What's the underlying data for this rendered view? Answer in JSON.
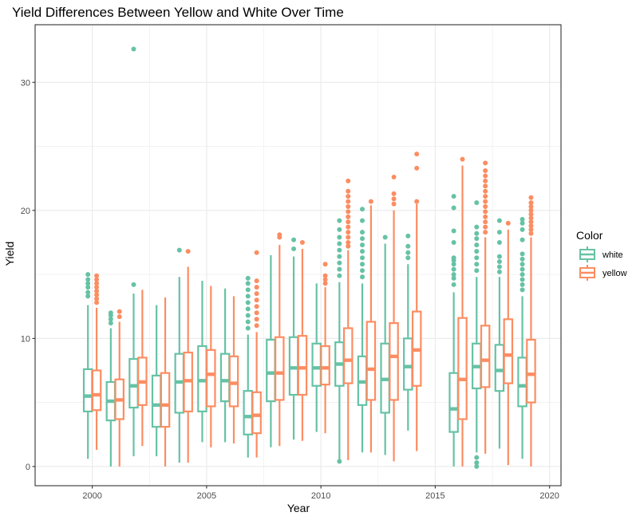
{
  "chart_data": {
    "type": "box",
    "title": "Yield Differences Between Yellow and White Over Time",
    "xlabel": "Year",
    "ylabel": "Yield",
    "xlim": [
      1997.5,
      2020.5
    ],
    "ylim": [
      -1.5,
      34.5
    ],
    "xticks": [
      2000,
      2005,
      2010,
      2015,
      2020
    ],
    "yticks": [
      0,
      10,
      20,
      30
    ],
    "grid": true,
    "legend": {
      "title": "Color",
      "position": "right"
    },
    "series": [
      {
        "name": "white",
        "color": "#66C2A5",
        "boxes": [
          {
            "year": 2000,
            "min": 0.6,
            "q1": 4.3,
            "median": 5.5,
            "q3": 7.6,
            "max": 12.6,
            "outliers": [
              13.3,
              13.6,
              14.0,
              14.3,
              14.6,
              15.0
            ]
          },
          {
            "year": 2001,
            "min": 0.0,
            "q1": 3.6,
            "median": 5.1,
            "q3": 6.6,
            "max": 10.8,
            "outliers": [
              11.2,
              11.5,
              11.8,
              12.0
            ]
          },
          {
            "year": 2002,
            "min": 0.8,
            "q1": 4.6,
            "median": 6.3,
            "q3": 8.4,
            "max": 13.5,
            "outliers": [
              14.2,
              32.6
            ]
          },
          {
            "year": 2003,
            "min": 0.8,
            "q1": 3.1,
            "median": 4.8,
            "q3": 7.1,
            "max": 12.6,
            "outliers": []
          },
          {
            "year": 2004,
            "min": 0.3,
            "q1": 4.2,
            "median": 6.6,
            "q3": 8.8,
            "max": 14.8,
            "outliers": [
              16.9
            ]
          },
          {
            "year": 2005,
            "min": 1.9,
            "q1": 4.3,
            "median": 6.7,
            "q3": 9.4,
            "max": 14.5,
            "outliers": []
          },
          {
            "year": 2006,
            "min": 1.9,
            "q1": 5.1,
            "median": 6.7,
            "q3": 8.8,
            "max": 13.9,
            "outliers": []
          },
          {
            "year": 2007,
            "min": 0.7,
            "q1": 2.5,
            "median": 3.9,
            "q3": 5.9,
            "max": 10.3,
            "outliers": [
              10.8,
              11.3,
              11.8,
              12.3,
              12.8,
              13.3,
              13.8,
              14.3,
              14.7
            ]
          },
          {
            "year": 2008,
            "min": 1.5,
            "q1": 5.1,
            "median": 7.3,
            "q3": 9.9,
            "max": 16.5,
            "outliers": []
          },
          {
            "year": 2009,
            "min": 2.1,
            "q1": 5.6,
            "median": 7.7,
            "q3": 10.1,
            "max": 16.4,
            "outliers": [
              17.0,
              17.7
            ]
          },
          {
            "year": 2010,
            "min": 2.7,
            "q1": 6.3,
            "median": 7.7,
            "q3": 9.6,
            "max": 14.3,
            "outliers": []
          },
          {
            "year": 2011,
            "min": 0.4,
            "q1": 6.3,
            "median": 8.0,
            "q3": 9.7,
            "max": 14.4,
            "outliers": [
              0.4,
              14.9,
              15.4,
              15.9,
              16.4,
              16.9,
              17.4,
              17.9,
              18.5,
              19.2
            ]
          },
          {
            "year": 2012,
            "min": 1.1,
            "q1": 4.8,
            "median": 6.6,
            "q3": 8.6,
            "max": 14.3,
            "outliers": [
              14.8,
              15.3,
              15.8,
              16.3,
              16.8,
              17.3,
              17.8,
              18.3,
              19.2,
              20.1
            ]
          },
          {
            "year": 2013,
            "min": 0.9,
            "q1": 4.2,
            "median": 6.8,
            "q3": 9.6,
            "max": 17.4,
            "outliers": [
              17.9
            ]
          },
          {
            "year": 2014,
            "min": 2.8,
            "q1": 6.0,
            "median": 7.8,
            "q3": 10.0,
            "max": 15.8,
            "outliers": [
              16.3,
              16.7,
              17.2,
              18.0
            ]
          },
          {
            "year": 2016,
            "min": 0.0,
            "q1": 2.7,
            "median": 4.5,
            "q3": 7.3,
            "max": 13.6,
            "outliers": [
              14.2,
              14.7,
              15.0,
              15.4,
              15.8,
              16.1,
              16.3,
              17.5,
              18.4,
              20.2,
              21.1
            ]
          },
          {
            "year": 2017,
            "min": 1.1,
            "q1": 6.1,
            "median": 7.8,
            "q3": 9.6,
            "max": 14.8,
            "outliers": [
              0.0,
              0.3,
              0.7,
              15.3,
              15.8,
              16.3,
              16.8,
              17.3,
              17.8,
              18.2,
              18.7,
              20.6
            ]
          },
          {
            "year": 2018,
            "min": 1.4,
            "q1": 5.9,
            "median": 7.5,
            "q3": 9.5,
            "max": 14.8,
            "outliers": [
              15.2,
              15.6,
              16.0,
              16.4,
              17.5,
              18.3,
              19.2
            ]
          },
          {
            "year": 2019,
            "min": 0.6,
            "q1": 4.7,
            "median": 6.3,
            "q3": 8.5,
            "max": 13.3,
            "outliers": [
              13.8,
              14.2,
              14.6,
              15.0,
              15.4,
              15.8,
              16.2,
              16.6,
              17.7,
              18.5,
              19.0,
              19.3
            ]
          }
        ]
      },
      {
        "name": "yellow",
        "color": "#FC8D62",
        "boxes": [
          {
            "year": 2000,
            "min": 1.3,
            "q1": 4.4,
            "median": 5.6,
            "q3": 7.5,
            "max": 12.4,
            "outliers": [
              12.8,
              13.1,
              13.4,
              13.7,
              14.0,
              14.3,
              14.6,
              14.9
            ]
          },
          {
            "year": 2001,
            "min": 0.0,
            "q1": 3.7,
            "median": 5.2,
            "q3": 6.8,
            "max": 11.3,
            "outliers": [
              11.7,
              12.1
            ]
          },
          {
            "year": 2002,
            "min": 1.6,
            "q1": 4.8,
            "median": 6.6,
            "q3": 8.5,
            "max": 13.8,
            "outliers": []
          },
          {
            "year": 2003,
            "min": 0.0,
            "q1": 3.1,
            "median": 4.8,
            "q3": 7.3,
            "max": 13.2,
            "outliers": []
          },
          {
            "year": 2004,
            "min": 0.3,
            "q1": 4.3,
            "median": 6.7,
            "q3": 8.9,
            "max": 15.6,
            "outliers": [
              16.8
            ]
          },
          {
            "year": 2005,
            "min": 1.5,
            "q1": 4.7,
            "median": 7.2,
            "q3": 9.1,
            "max": 14.1,
            "outliers": []
          },
          {
            "year": 2006,
            "min": 1.8,
            "q1": 4.7,
            "median": 6.5,
            "q3": 8.6,
            "max": 13.3,
            "outliers": []
          },
          {
            "year": 2007,
            "min": 0.7,
            "q1": 2.6,
            "median": 4.0,
            "q3": 5.8,
            "max": 10.5,
            "outliers": [
              11.0,
              11.5,
              12.0,
              12.5,
              13.0,
              13.5,
              14.0,
              14.5,
              16.7
            ]
          },
          {
            "year": 2008,
            "min": 1.6,
            "q1": 5.2,
            "median": 7.3,
            "q3": 10.1,
            "max": 17.3,
            "outliers": [
              17.9,
              18.1
            ]
          },
          {
            "year": 2009,
            "min": 2.0,
            "q1": 5.6,
            "median": 7.7,
            "q3": 10.2,
            "max": 17.0,
            "outliers": [
              17.5
            ]
          },
          {
            "year": 2010,
            "min": 2.6,
            "q1": 6.4,
            "median": 7.7,
            "q3": 9.4,
            "max": 14.0,
            "outliers": [
              14.3,
              14.6,
              14.9,
              15.8
            ]
          },
          {
            "year": 2011,
            "min": 0.5,
            "q1": 6.5,
            "median": 8.3,
            "q3": 10.8,
            "max": 16.9,
            "outliers": [
              17.2,
              17.5,
              17.9,
              18.3,
              18.7,
              19.1,
              19.5,
              19.9,
              20.3,
              20.7,
              21.1,
              21.5,
              22.3
            ]
          },
          {
            "year": 2012,
            "min": 1.1,
            "q1": 5.2,
            "median": 7.6,
            "q3": 11.3,
            "max": 20.4,
            "outliers": [
              20.7
            ]
          },
          {
            "year": 2013,
            "min": 0.4,
            "q1": 5.2,
            "median": 8.6,
            "q3": 11.2,
            "max": 20.0,
            "outliers": [
              20.5,
              20.9,
              21.3,
              22.6
            ]
          },
          {
            "year": 2014,
            "min": 1.2,
            "q1": 6.3,
            "median": 9.1,
            "q3": 12.1,
            "max": 20.5,
            "outliers": [
              20.7,
              23.3,
              24.4
            ]
          },
          {
            "year": 2016,
            "min": 0.0,
            "q1": 3.7,
            "median": 6.8,
            "q3": 11.6,
            "max": 23.5,
            "outliers": [
              24.0
            ]
          },
          {
            "year": 2017,
            "min": 1.0,
            "q1": 6.2,
            "median": 8.3,
            "q3": 11.0,
            "max": 17.9,
            "outliers": [
              18.3,
              18.7,
              19.1,
              19.5,
              19.9,
              20.3,
              20.7,
              21.1,
              21.5,
              21.9,
              22.3,
              22.7,
              23.1,
              23.7
            ]
          },
          {
            "year": 2018,
            "min": 0.1,
            "q1": 6.5,
            "median": 8.7,
            "q3": 11.5,
            "max": 18.5,
            "outliers": [
              19.0
            ]
          },
          {
            "year": 2019,
            "min": 0.0,
            "q1": 5.0,
            "median": 7.2,
            "q3": 9.9,
            "max": 17.9,
            "outliers": [
              18.2,
              18.5,
              18.8,
              19.1,
              19.4,
              19.7,
              20.0,
              20.3,
              20.6,
              21.0
            ]
          }
        ]
      }
    ]
  }
}
